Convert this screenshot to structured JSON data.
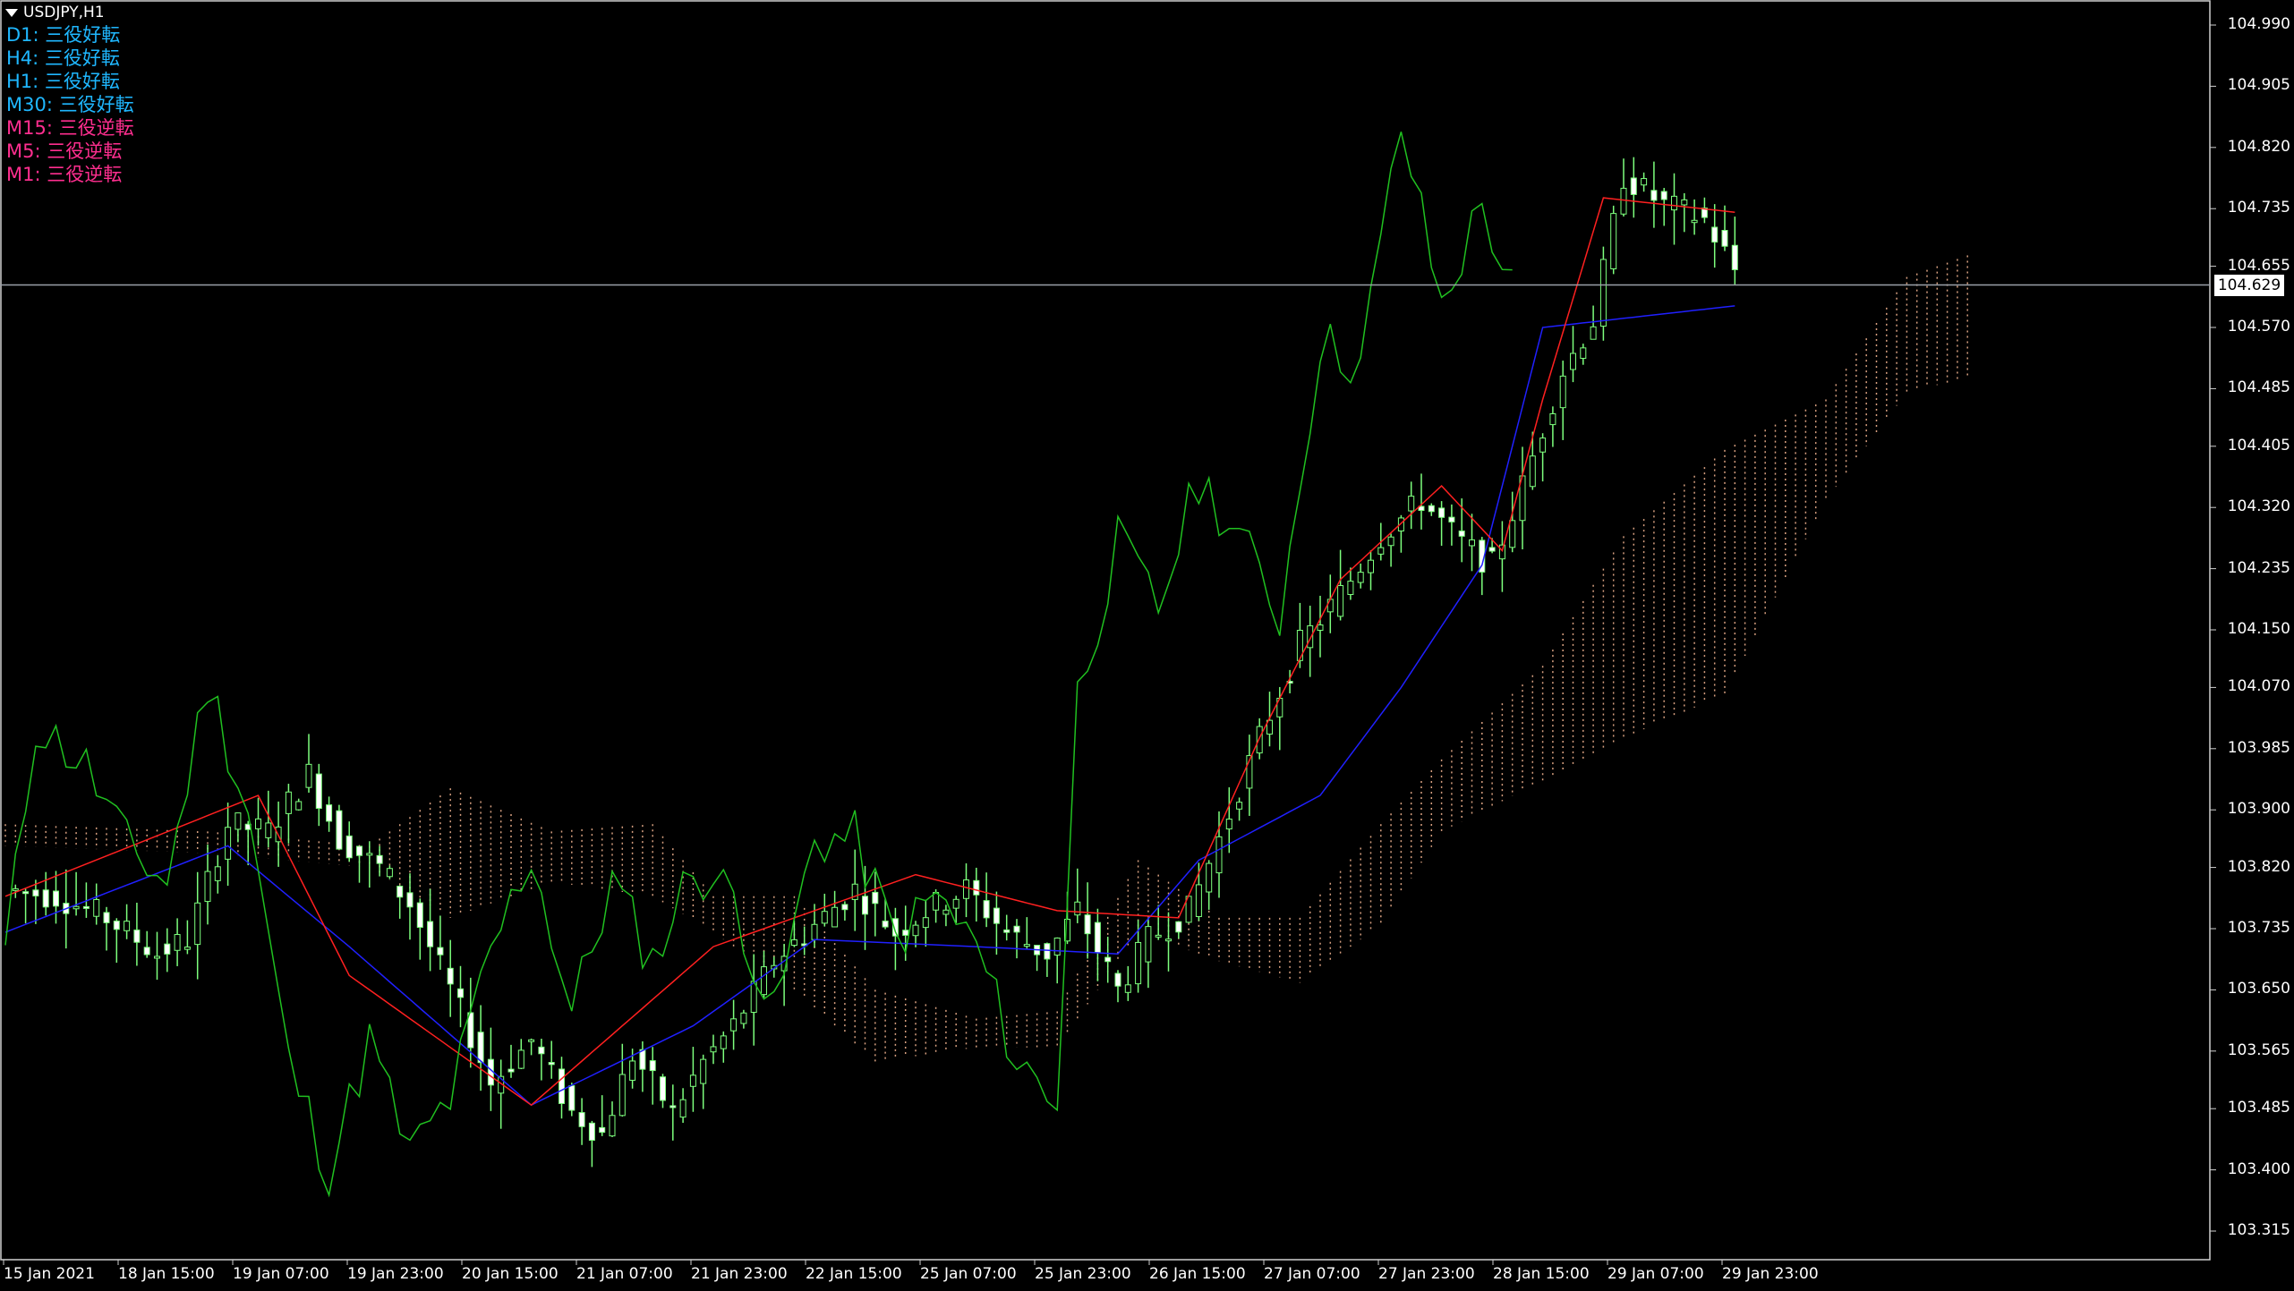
{
  "chart_title": "USDJPY,H1",
  "signals": [
    {
      "tf": "D1",
      "text": "D1: 三役好転",
      "color": "#1fb7ff"
    },
    {
      "tf": "H4",
      "text": "H4: 三役好転",
      "color": "#1fb7ff"
    },
    {
      "tf": "H1",
      "text": "H1: 三役好転",
      "color": "#1fb7ff"
    },
    {
      "tf": "M30",
      "text": "M30: 三役好転",
      "color": "#1fb7ff"
    },
    {
      "tf": "M15",
      "text": "M15: 三役逆転",
      "color": "#ff2e8f"
    },
    {
      "tf": "M5",
      "text": "M5: 三役逆転",
      "color": "#ff2e8f"
    },
    {
      "tf": "M1",
      "text": "M1: 三役逆転",
      "color": "#ff2e8f"
    }
  ],
  "current_price": "104.629",
  "colors": {
    "background": "#000000",
    "bull_candle": "#7dff7d",
    "bear_candle": "#ffffff",
    "tenkan": "#ff2020",
    "kijun": "#2020ff",
    "chikou": "#20c020",
    "cloud": "#d8a080",
    "current_line": "#9aa0a8"
  },
  "chart_data": {
    "type": "candlestick",
    "symbol": "USDJPY",
    "timeframe": "H1",
    "y_ticks": [
      "104.990",
      "104.905",
      "104.820",
      "104.735",
      "104.655",
      "104.570",
      "104.485",
      "104.405",
      "104.320",
      "104.235",
      "104.150",
      "104.070",
      "103.985",
      "103.900",
      "103.820",
      "103.735",
      "103.650",
      "103.565",
      "103.485",
      "103.400",
      "103.315"
    ],
    "x_ticks": [
      "15 Jan 2021",
      "18 Jan 15:00",
      "19 Jan 07:00",
      "19 Jan 23:00",
      "20 Jan 15:00",
      "21 Jan 07:00",
      "21 Jan 23:00",
      "22 Jan 15:00",
      "25 Jan 07:00",
      "25 Jan 23:00",
      "26 Jan 15:00",
      "27 Jan 07:00",
      "27 Jan 23:00",
      "28 Jan 15:00",
      "29 Jan 07:00",
      "29 Jan 23:00"
    ],
    "ylim": [
      103.31,
      105.01
    ],
    "close_points": [
      [
        0,
        103.79
      ],
      [
        5,
        103.78
      ],
      [
        10,
        103.75
      ],
      [
        15,
        103.7
      ],
      [
        18,
        103.72
      ],
      [
        22,
        103.88
      ],
      [
        26,
        103.87
      ],
      [
        30,
        103.95
      ],
      [
        33,
        103.86
      ],
      [
        37,
        103.82
      ],
      [
        40,
        103.77
      ],
      [
        45,
        103.62
      ],
      [
        48,
        103.52
      ],
      [
        52,
        103.58
      ],
      [
        56,
        103.48
      ],
      [
        59,
        103.45
      ],
      [
        62,
        103.56
      ],
      [
        66,
        103.48
      ],
      [
        69,
        103.55
      ],
      [
        72,
        103.6
      ],
      [
        76,
        103.69
      ],
      [
        80,
        103.74
      ],
      [
        84,
        103.79
      ],
      [
        88,
        103.73
      ],
      [
        91,
        103.76
      ],
      [
        95,
        103.79
      ],
      [
        99,
        103.73
      ],
      [
        103,
        103.7
      ],
      [
        106,
        103.76
      ],
      [
        110,
        103.65
      ],
      [
        113,
        103.72
      ],
      [
        117,
        103.76
      ],
      [
        120,
        103.86
      ],
      [
        124,
        104.0
      ],
      [
        128,
        104.13
      ],
      [
        132,
        104.2
      ],
      [
        136,
        104.28
      ],
      [
        140,
        104.33
      ],
      [
        144,
        104.27
      ],
      [
        147,
        104.24
      ],
      [
        150,
        104.35
      ],
      [
        154,
        104.51
      ],
      [
        157,
        104.58
      ],
      [
        160,
        104.78
      ],
      [
        164,
        104.74
      ],
      [
        168,
        104.72
      ],
      [
        171,
        104.65
      ]
    ],
    "kijun_points": [
      [
        0,
        103.73
      ],
      [
        22,
        103.85
      ],
      [
        34,
        103.71
      ],
      [
        52,
        103.49
      ],
      [
        68,
        103.6
      ],
      [
        80,
        103.72
      ],
      [
        96,
        103.71
      ],
      [
        110,
        103.7
      ],
      [
        118,
        103.83
      ],
      [
        130,
        103.92
      ],
      [
        138,
        104.07
      ],
      [
        146,
        104.24
      ],
      [
        152,
        104.57
      ],
      [
        171,
        104.6
      ]
    ],
    "tenkan_points": [
      [
        0,
        103.78
      ],
      [
        25,
        103.92
      ],
      [
        34,
        103.67
      ],
      [
        52,
        103.49
      ],
      [
        70,
        103.71
      ],
      [
        90,
        103.81
      ],
      [
        104,
        103.76
      ],
      [
        116,
        103.75
      ],
      [
        124,
        104.0
      ],
      [
        132,
        104.22
      ],
      [
        142,
        104.35
      ],
      [
        148,
        104.26
      ],
      [
        152,
        104.47
      ],
      [
        158,
        104.75
      ],
      [
        171,
        104.73
      ]
    ],
    "chikou_points": [
      [
        0,
        103.7
      ],
      [
        3,
        104.02
      ],
      [
        8,
        103.96
      ],
      [
        12,
        103.85
      ],
      [
        16,
        103.8
      ],
      [
        20,
        104.08
      ],
      [
        24,
        103.9
      ],
      [
        28,
        103.55
      ],
      [
        32,
        103.4
      ],
      [
        36,
        103.58
      ],
      [
        40,
        103.42
      ],
      [
        44,
        103.5
      ],
      [
        48,
        103.7
      ],
      [
        52,
        103.84
      ],
      [
        56,
        103.62
      ],
      [
        60,
        103.8
      ],
      [
        64,
        103.69
      ],
      [
        68,
        103.82
      ],
      [
        72,
        103.78
      ],
      [
        76,
        103.61
      ],
      [
        80,
        103.86
      ],
      [
        84,
        103.86
      ],
      [
        88,
        103.72
      ],
      [
        92,
        103.78
      ],
      [
        96,
        103.71
      ],
      [
        100,
        103.55
      ],
      [
        104,
        103.5
      ],
      [
        106,
        104.06
      ],
      [
        110,
        104.27
      ],
      [
        114,
        104.18
      ],
      [
        118,
        104.36
      ],
      [
        122,
        104.28
      ],
      [
        126,
        104.17
      ],
      [
        130,
        104.55
      ],
      [
        134,
        104.52
      ],
      [
        138,
        104.85
      ],
      [
        142,
        104.6
      ],
      [
        146,
        104.74
      ],
      [
        149,
        104.62
      ]
    ],
    "cloud": {
      "span_a": [
        [
          0,
          103.88
        ],
        [
          20,
          103.87
        ],
        [
          36,
          103.85
        ],
        [
          44,
          103.93
        ],
        [
          54,
          103.87
        ],
        [
          64,
          103.88
        ],
        [
          70,
          103.78
        ],
        [
          78,
          103.78
        ],
        [
          86,
          103.65
        ],
        [
          96,
          103.61
        ],
        [
          104,
          103.62
        ],
        [
          112,
          103.83
        ],
        [
          120,
          103.75
        ],
        [
          128,
          103.75
        ],
        [
          136,
          103.88
        ],
        [
          142,
          103.97
        ],
        [
          152,
          104.1
        ],
        [
          160,
          104.28
        ],
        [
          170,
          104.4
        ],
        [
          180,
          104.47
        ],
        [
          188,
          104.64
        ],
        [
          194,
          104.67
        ]
      ],
      "span_b": [
        [
          0,
          103.85
        ],
        [
          20,
          103.84
        ],
        [
          36,
          103.82
        ],
        [
          44,
          103.75
        ],
        [
          54,
          103.8
        ],
        [
          64,
          103.78
        ],
        [
          70,
          103.73
        ],
        [
          78,
          103.65
        ],
        [
          86,
          103.55
        ],
        [
          96,
          103.57
        ],
        [
          104,
          103.57
        ],
        [
          112,
          103.73
        ],
        [
          120,
          103.69
        ],
        [
          128,
          103.66
        ],
        [
          136,
          103.74
        ],
        [
          142,
          103.87
        ],
        [
          152,
          103.94
        ],
        [
          160,
          104.0
        ],
        [
          170,
          104.06
        ],
        [
          180,
          104.33
        ],
        [
          188,
          104.48
        ],
        [
          194,
          104.5
        ]
      ]
    }
  }
}
